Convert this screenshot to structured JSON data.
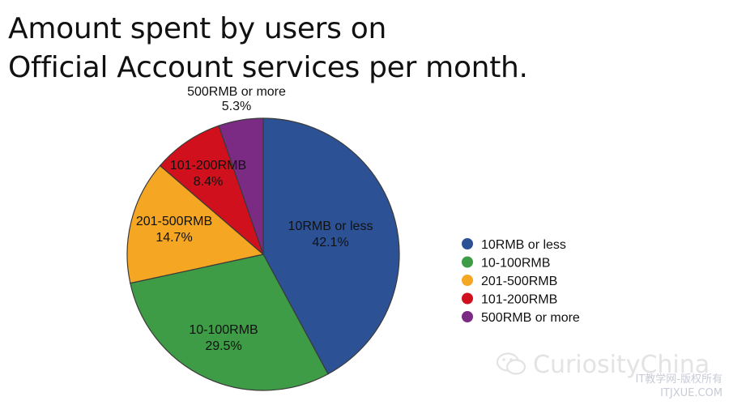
{
  "title": {
    "line1": "Amount spent by users on",
    "line2": "Official Account services per month."
  },
  "chart_data": {
    "type": "pie",
    "title": "Amount spent by users on Official Account services per month.",
    "start": "12 o'clock",
    "direction": "clockwise",
    "slices": [
      {
        "label": "10RMB or less",
        "value": 42.1,
        "value_label": "42.1%",
        "color": "#2c5295"
      },
      {
        "label": "10-100RMB",
        "value": 29.5,
        "value_label": "29.5%",
        "color": "#3e9c46"
      },
      {
        "label": "201-500RMB",
        "value": 14.7,
        "value_label": "14.7%",
        "color": "#f5a623"
      },
      {
        "label": "101-200RMB",
        "value": 8.4,
        "value_label": "8.4%",
        "color": "#d0101d"
      },
      {
        "label": "500RMB or more",
        "value": 5.3,
        "value_label": "5.3%",
        "color": "#7b2b84"
      }
    ],
    "legend": {
      "placement": "right",
      "entries": [
        "10RMB or less",
        "10-100RMB",
        "201-500RMB",
        "101-200RMB",
        "500RMB or more"
      ]
    }
  },
  "watermark": {
    "brand": "CuriosityChina",
    "site_cn": "IT教学网-版权所有",
    "site_url": "ITJXUE.COM"
  }
}
